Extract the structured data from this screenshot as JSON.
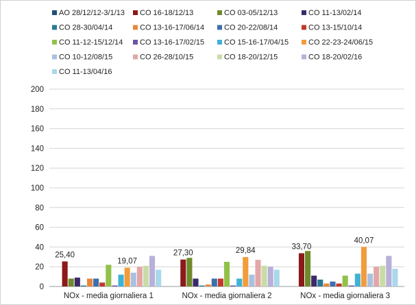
{
  "chart_data": {
    "type": "bar",
    "title": "",
    "xlabel": "",
    "ylabel": "",
    "ylim": [
      0,
      200
    ],
    "yticks": [
      0,
      20,
      40,
      60,
      80,
      100,
      120,
      140,
      160,
      180,
      200
    ],
    "grid": true,
    "legend_position": "top",
    "categories": [
      "NOx - media giornaliera 1",
      "NOx - media giornaliera 2",
      "NOx - media giornaliera 3"
    ],
    "series": [
      {
        "name": "AO 28/12/12-3/1/13",
        "color": "#1f4e79",
        "values": [
          0,
          0,
          0
        ]
      },
      {
        "name": "CO 16-18/12/13",
        "color": "#8b1a1a",
        "values": [
          25.4,
          27.3,
          33.7
        ]
      },
      {
        "name": "CO 03-05/12/13",
        "color": "#6e8b2a",
        "values": [
          8,
          29,
          36
        ]
      },
      {
        "name": "CO 11-13/02/14",
        "color": "#3b2a6b",
        "values": [
          9,
          8,
          11
        ]
      },
      {
        "name": "CO 28-30/04/14",
        "color": "#2a7a94",
        "values": [
          1,
          1,
          7
        ]
      },
      {
        "name": "CO 13-16-17/06/14",
        "color": "#e8873a",
        "values": [
          8,
          2,
          3
        ]
      },
      {
        "name": "CO 20-22/08/14",
        "color": "#3d6fae",
        "values": [
          8,
          8,
          5
        ]
      },
      {
        "name": "CO 13-15/10/14",
        "color": "#c0392b",
        "values": [
          4,
          8,
          3
        ]
      },
      {
        "name": "CO 11-12-15/12/14",
        "color": "#92c14a",
        "values": [
          22,
          25,
          11
        ]
      },
      {
        "name": "CO 13-16-17/02/15",
        "color": "#6a55a6",
        "values": [
          1,
          1,
          1
        ]
      },
      {
        "name": "CO 15-16-17/04/15",
        "color": "#3fb3d6",
        "values": [
          12,
          8,
          13
        ]
      },
      {
        "name": "CO 22-23-24/06/15",
        "color": "#f39c3c",
        "values": [
          19.07,
          29.84,
          40.07
        ]
      },
      {
        "name": "CO 10-12/08/15",
        "color": "#a8c1e0",
        "values": [
          14,
          12,
          13
        ]
      },
      {
        "name": "CO 26-28/10/15",
        "color": "#e3a6a6",
        "values": [
          20,
          27,
          20
        ]
      },
      {
        "name": "CO 18-20/12/15",
        "color": "#c9dca6",
        "values": [
          21,
          21,
          21
        ]
      },
      {
        "name": "CO 18-20/02/16",
        "color": "#b8b0d9",
        "values": [
          31,
          20,
          31
        ]
      },
      {
        "name": "CO 11-13/04/16",
        "color": "#a9d8ea",
        "values": [
          17,
          17,
          18
        ]
      }
    ],
    "data_labels": [
      {
        "series": 1,
        "category": 0,
        "text": "25,40"
      },
      {
        "series": 11,
        "category": 0,
        "text": "19,07"
      },
      {
        "series": 1,
        "category": 1,
        "text": "27,30"
      },
      {
        "series": 11,
        "category": 1,
        "text": "29,84"
      },
      {
        "series": 1,
        "category": 2,
        "text": "33,70"
      },
      {
        "series": 11,
        "category": 2,
        "text": "40,07"
      }
    ]
  }
}
